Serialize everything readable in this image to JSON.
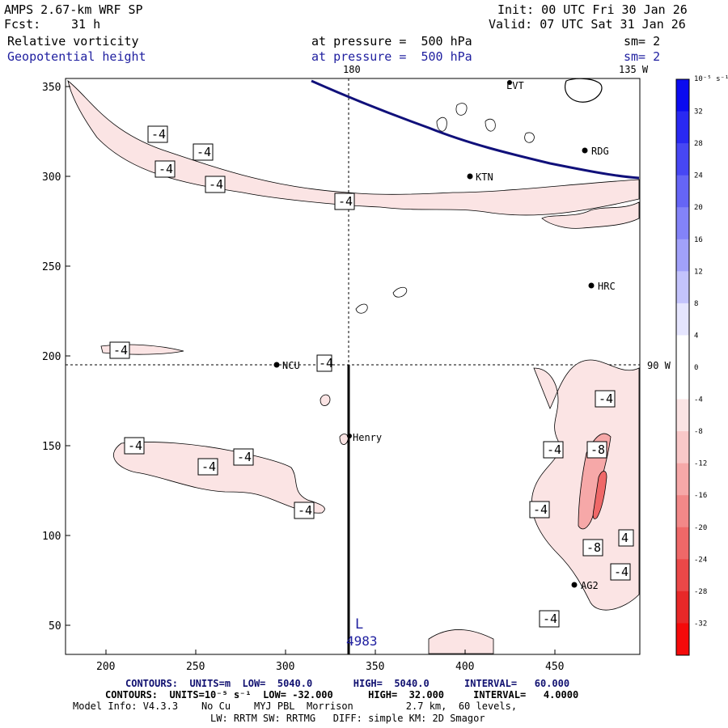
{
  "header": {
    "model": "AMPS 2.67-km WRF SP",
    "init": "Init: 00 UTC Fri 30 Jan 26",
    "fcst_label": "Fcst:",
    "fcst_value": "31 h",
    "valid": "Valid: 07 UTC Sat 31 Jan 26",
    "field1_name": "Relative vorticity",
    "field1_level": "at pressure =  500 hPa",
    "field1_sm": "sm= 2",
    "field2_name": "Geopotential height",
    "field2_level": "at pressure =  500 hPa",
    "field2_sm": "sm= 2"
  },
  "map": {
    "top_lon_180": "180",
    "top_lon_135w": "135 W",
    "right_lon_90w": "90 W",
    "x_ticks": [
      "200",
      "250",
      "300",
      "350",
      "400",
      "450"
    ],
    "y_ticks": [
      "350",
      "300",
      "250",
      "200",
      "150",
      "100",
      "50"
    ],
    "stations": [
      {
        "id": "LVT",
        "label": "LVT"
      },
      {
        "id": "RDG",
        "label": "RDG"
      },
      {
        "id": "KTN",
        "label": "KTN"
      },
      {
        "id": "HRC",
        "label": "HRC"
      },
      {
        "id": "NCU",
        "label": "NCU"
      },
      {
        "id": "Henry",
        "label": "Henry"
      },
      {
        "id": "AG2",
        "label": "AG2"
      }
    ],
    "low_marker": "L",
    "low_value": "4983",
    "contour_labels": [
      "-4",
      "-4",
      "-4",
      "-4",
      "-4",
      "-4",
      "-4",
      "-4",
      "-4",
      "-4",
      "-4",
      "-4",
      "-4",
      "-8",
      "-4",
      "-8",
      "4",
      "-4",
      "-4"
    ]
  },
  "colorbar": {
    "unit_label": "10⁻⁵ s⁻¹",
    "ticks": [
      "32",
      "28",
      "24",
      "20",
      "16",
      "12",
      "8",
      "4",
      "0",
      "-4",
      "-8",
      "-12",
      "-16",
      "-20",
      "-24",
      "-28",
      "-32"
    ],
    "colors": [
      "#0b0bf0",
      "#2929f2",
      "#4747f4",
      "#6565f6",
      "#8383f8",
      "#a1a1fa",
      "#c3c3fc",
      "#e5e5fe",
      "#ffffff",
      "#ffffff",
      "#fbe4e4",
      "#f9c8c8",
      "#f6a8a8",
      "#f28888",
      "#ef6868",
      "#eb4848",
      "#e82828",
      "#f50a0a"
    ]
  },
  "footer": {
    "line1": "CONTOURS:  UNITS=m  LOW=  5040.0       HIGH=  5040.0      INTERVAL=   60.000",
    "line2": "CONTOURS:  UNITS=10⁻⁵ s⁻¹  LOW= -32.000      HIGH=  32.000     INTERVAL=   4.0000",
    "line3": "Model Info: V4.3.3    No Cu    MYJ PBL  Morrison         2.7 km,  60 levels,",
    "line4": "LW: RRTM SW: RRTMG   DIFF: simple KM: 2D Smagor"
  }
}
